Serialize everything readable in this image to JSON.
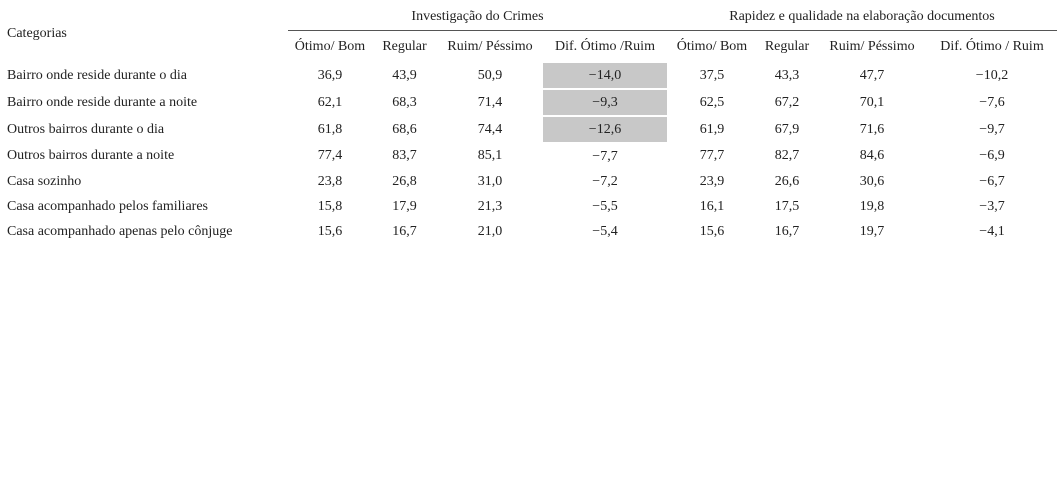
{
  "header": {
    "category_label": "Categorias",
    "groups": [
      "Investigação do Crimes",
      "Rapidez e qualidade na elaboração documentos"
    ],
    "columns": [
      "Ótimo/ Bom",
      "Regular",
      "Ruim/ Péssimo",
      "Dif. Ótimo /Ruim",
      "Ótimo/ Bom",
      "Regular",
      "Ruim/ Péssimo",
      "Dif. Ótimo / Ruim"
    ]
  },
  "table": {
    "rows": [
      [
        "Bairro onde reside durante o dia",
        "36,9",
        "43,9",
        "50,9",
        "−14,0",
        "37,5",
        "43,3",
        "47,7",
        "−10,2"
      ],
      [
        "Bairro onde reside durante a noite",
        "62,1",
        "68,3",
        "71,4",
        "−9,3",
        "62,5",
        "67,2",
        "70,1",
        "−7,6"
      ],
      [
        "Outros bairros durante o dia",
        "61,8",
        "68,6",
        "74,4",
        "−12,6",
        "61,9",
        "67,9",
        "71,6",
        "−9,7"
      ],
      [
        "Outros bairros durante a noite",
        "77,4",
        "83,7",
        "85,1",
        "−7,7",
        "77,7",
        "82,7",
        "84,6",
        "−6,9"
      ],
      [
        "Casa sozinho",
        "23,8",
        "26,8",
        "31,0",
        "−7,2",
        "23,9",
        "26,6",
        "30,6",
        "−6,7"
      ],
      [
        "Casa acompanhado pelos familiares",
        "15,8",
        "17,9",
        "21,3",
        "−5,5",
        "16,1",
        "17,5",
        "19,8",
        "−3,7"
      ],
      [
        "Casa acompanhado apenas pelo cônjuge",
        "15,6",
        "16,7",
        "21,0",
        "−5,4",
        "15,6",
        "16,7",
        "19,7",
        "−4,1"
      ]
    ]
  }
}
